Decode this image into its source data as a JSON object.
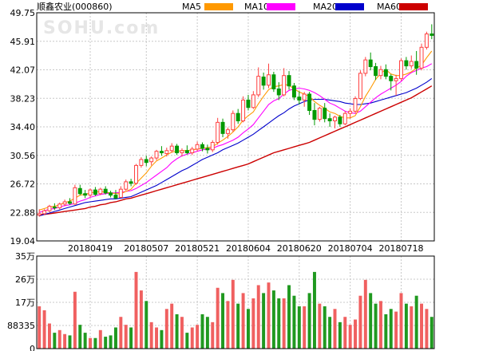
{
  "title": "顺鑫农业(000860)",
  "watermark": "SOHU.com",
  "legend": [
    {
      "name": "MA5",
      "color": "#ff9900"
    },
    {
      "name": "MA10",
      "color": "#ff00ff"
    },
    {
      "name": "MA20",
      "color": "#0000cc"
    },
    {
      "name": "MA60",
      "color": "#cc0000"
    }
  ],
  "colors": {
    "up": "#ff4040",
    "down": "#009900",
    "up_vol": "#f06060",
    "down_vol": "#209920"
  },
  "chart_data": [
    {
      "type": "line",
      "name": "price_panel",
      "ylim": [
        19.04,
        49.75
      ],
      "yticks": [
        "49.75",
        "45.91",
        "42.07",
        "38.23",
        "34.40",
        "30.56",
        "26.72",
        "22.88",
        "19.04"
      ],
      "xticks": [
        {
          "label": "20180419",
          "index": 10
        },
        {
          "label": "20180507",
          "index": 21
        },
        {
          "label": "20180521",
          "index": 31
        },
        {
          "label": "20180604",
          "index": 41
        },
        {
          "label": "20180620",
          "index": 51
        },
        {
          "label": "20180704",
          "index": 61
        },
        {
          "label": "20180718",
          "index": 71
        }
      ],
      "candles": [
        [
          22.5,
          23.3,
          22.3,
          22.7
        ],
        [
          22.7,
          23.3,
          22.5,
          23.1
        ],
        [
          23.1,
          23.9,
          22.9,
          23.7
        ],
        [
          23.6,
          24.1,
          23.2,
          23.5
        ],
        [
          23.5,
          24.2,
          23.3,
          24.0
        ],
        [
          24.0,
          24.6,
          23.7,
          24.3
        ],
        [
          24.3,
          24.8,
          23.9,
          24.1
        ],
        [
          24.0,
          26.6,
          23.9,
          26.2
        ],
        [
          26.1,
          26.6,
          25.2,
          25.4
        ],
        [
          25.4,
          25.9,
          24.8,
          25.2
        ],
        [
          25.2,
          26.1,
          24.9,
          25.9
        ],
        [
          25.9,
          26.3,
          25.1,
          25.3
        ],
        [
          25.4,
          26.2,
          25.2,
          26.0
        ],
        [
          26.0,
          26.4,
          25.3,
          25.5
        ],
        [
          25.5,
          25.8,
          24.9,
          25.2
        ],
        [
          25.2,
          25.9,
          24.7,
          24.8
        ],
        [
          24.9,
          26.4,
          24.8,
          26.0
        ],
        [
          26.0,
          27.3,
          25.8,
          27.0
        ],
        [
          27.0,
          27.4,
          26.4,
          26.8
        ],
        [
          26.8,
          29.4,
          26.6,
          29.2
        ],
        [
          29.2,
          30.3,
          28.9,
          30.0
        ],
        [
          30.0,
          30.5,
          29.1,
          29.6
        ],
        [
          29.7,
          30.4,
          29.2,
          30.2
        ],
        [
          30.2,
          31.3,
          29.9,
          31.1
        ],
        [
          31.1,
          31.8,
          30.5,
          30.9
        ],
        [
          30.8,
          31.6,
          30.4,
          31.2
        ],
        [
          31.2,
          32.2,
          30.9,
          31.8
        ],
        [
          31.8,
          32.1,
          30.6,
          30.9
        ],
        [
          30.9,
          31.5,
          30.4,
          31.2
        ],
        [
          31.2,
          31.9,
          30.7,
          30.9
        ],
        [
          30.9,
          31.7,
          30.6,
          31.4
        ],
        [
          31.4,
          32.4,
          31.1,
          32.0
        ],
        [
          32.0,
          32.3,
          31.1,
          31.5
        ],
        [
          31.5,
          32.0,
          30.8,
          31.3
        ],
        [
          31.3,
          32.6,
          31.0,
          32.3
        ],
        [
          32.3,
          35.6,
          32.0,
          35.0
        ],
        [
          35.0,
          35.5,
          33.0,
          33.5
        ],
        [
          33.5,
          34.3,
          32.8,
          34.0
        ],
        [
          34.0,
          36.6,
          33.7,
          36.2
        ],
        [
          36.2,
          36.8,
          34.8,
          35.2
        ],
        [
          35.2,
          38.5,
          35.0,
          38.0
        ],
        [
          38.0,
          38.7,
          36.6,
          37.0
        ],
        [
          37.0,
          39.2,
          36.8,
          38.7
        ],
        [
          38.7,
          42.4,
          38.4,
          41.2
        ],
        [
          41.1,
          41.7,
          39.4,
          40.0
        ],
        [
          40.0,
          42.9,
          39.6,
          41.4
        ],
        [
          41.4,
          41.8,
          39.1,
          39.5
        ],
        [
          39.5,
          40.4,
          38.0,
          38.7
        ],
        [
          38.7,
          42.3,
          38.5,
          41.3
        ],
        [
          41.3,
          41.9,
          39.4,
          39.9
        ],
        [
          39.9,
          40.3,
          38.0,
          38.4
        ],
        [
          38.4,
          39.2,
          37.4,
          38.0
        ],
        [
          38.0,
          39.1,
          37.1,
          38.8
        ],
        [
          38.8,
          39.1,
          36.0,
          36.6
        ],
        [
          36.6,
          37.6,
          34.6,
          35.4
        ],
        [
          35.4,
          37.1,
          35.1,
          36.9
        ],
        [
          36.9,
          37.6,
          35.0,
          35.5
        ],
        [
          35.5,
          36.2,
          34.4,
          35.2
        ],
        [
          35.2,
          35.9,
          34.2,
          35.7
        ],
        [
          35.7,
          36.0,
          34.4,
          34.8
        ],
        [
          34.8,
          36.5,
          34.6,
          36.2
        ],
        [
          36.2,
          36.9,
          35.5,
          36.5
        ],
        [
          36.5,
          38.5,
          36.2,
          38.2
        ],
        [
          38.2,
          42.0,
          38.0,
          41.6
        ],
        [
          41.6,
          43.8,
          41.2,
          43.4
        ],
        [
          43.4,
          44.4,
          42.0,
          42.5
        ],
        [
          42.5,
          43.0,
          40.7,
          41.3
        ],
        [
          41.3,
          42.6,
          40.8,
          42.1
        ],
        [
          42.1,
          42.8,
          40.8,
          41.2
        ],
        [
          41.2,
          41.5,
          39.3,
          40.6
        ],
        [
          40.6,
          41.4,
          38.6,
          40.9
        ],
        [
          40.9,
          43.6,
          40.6,
          43.3
        ],
        [
          43.3,
          43.8,
          42.1,
          42.6
        ],
        [
          42.6,
          44.0,
          42.2,
          43.2
        ],
        [
          43.2,
          44.6,
          41.4,
          42.3
        ],
        [
          42.3,
          45.6,
          42.0,
          45.1
        ],
        [
          45.1,
          47.2,
          44.8,
          46.9
        ],
        [
          46.9,
          48.2,
          46.2,
          46.7
        ]
      ],
      "ma5": [
        23.2,
        23.4,
        23.6,
        23.7,
        23.9,
        24.2,
        24.4,
        24.8,
        25.2,
        25.3,
        25.5,
        25.6,
        25.7,
        25.6,
        25.5,
        25.4,
        25.4,
        25.7,
        26.0,
        26.8,
        27.5,
        28.2,
        29.1,
        29.8,
        30.2,
        30.6,
        31.0,
        31.1,
        31.2,
        31.2,
        31.3,
        31.4,
        31.5,
        31.6,
        31.7,
        32.2,
        32.6,
        33.1,
        33.7,
        34.4,
        35.3,
        35.9,
        36.4,
        37.5,
        38.5,
        39.4,
        39.8,
        39.9,
        40.1,
        40.0,
        39.5,
        39.1,
        38.8,
        38.5,
        37.8,
        37.3,
        36.9,
        36.4,
        36.2,
        35.8,
        35.6,
        35.6,
        35.9,
        37.1,
        38.5,
        39.6,
        40.8,
        41.6,
        42.1,
        41.5,
        41.3,
        41.3,
        41.5,
        41.8,
        42.3,
        42.7,
        43.7,
        44.6
      ],
      "ma10": [
        22.9,
        23.1,
        23.3,
        23.4,
        23.6,
        23.8,
        23.9,
        24.1,
        24.4,
        24.6,
        24.9,
        25.1,
        25.3,
        25.4,
        25.5,
        25.5,
        25.6,
        25.7,
        25.8,
        26.1,
        26.5,
        26.9,
        27.4,
        27.9,
        28.4,
        28.9,
        29.6,
        30.1,
        30.5,
        30.7,
        30.9,
        31.1,
        31.3,
        31.4,
        31.5,
        31.8,
        32.0,
        32.3,
        32.6,
        33.0,
        33.6,
        34.1,
        34.7,
        35.6,
        36.5,
        37.4,
        37.9,
        38.2,
        38.8,
        39.3,
        39.5,
        39.6,
        39.5,
        39.3,
        39.0,
        38.6,
        38.1,
        37.6,
        37.3,
        36.9,
        36.5,
        36.3,
        36.2,
        36.5,
        37.1,
        37.7,
        38.3,
        38.8,
        39.2,
        39.6,
        40.0,
        40.5,
        41.2,
        41.7,
        42.0,
        42.3,
        42.5,
        42.9
      ],
      "ma20": [
        22.4,
        22.6,
        22.8,
        23.0,
        23.2,
        23.4,
        23.6,
        23.8,
        24.0,
        24.2,
        24.3,
        24.4,
        24.5,
        24.6,
        24.7,
        24.7,
        24.8,
        24.9,
        25.0,
        25.3,
        25.6,
        25.9,
        26.2,
        26.5,
        26.9,
        27.3,
        27.7,
        28.1,
        28.5,
        28.8,
        29.2,
        29.6,
        30.0,
        30.3,
        30.6,
        30.9,
        31.3,
        31.6,
        31.9,
        32.2,
        32.6,
        33.0,
        33.4,
        33.9,
        34.4,
        34.9,
        35.4,
        35.9,
        36.3,
        36.8,
        37.2,
        37.5,
        37.8,
        38.0,
        38.1,
        38.1,
        38.1,
        38.0,
        37.9,
        37.8,
        37.6,
        37.5,
        37.4,
        37.4,
        37.5,
        37.6,
        37.8,
        38.0,
        38.2,
        38.4,
        38.6,
        38.8,
        39.0,
        39.3,
        39.6,
        40.0,
        40.4,
        40.9
      ],
      "ma60": [
        22.6,
        22.6,
        22.7,
        22.8,
        22.9,
        23.0,
        23.1,
        23.2,
        23.3,
        23.4,
        23.6,
        23.7,
        23.9,
        24.0,
        24.2,
        24.3,
        24.5,
        24.7,
        24.8,
        25.0,
        25.2,
        25.4,
        25.6,
        25.8,
        26.0,
        26.2,
        26.4,
        26.6,
        26.8,
        27.0,
        27.2,
        27.4,
        27.6,
        27.8,
        28.0,
        28.2,
        28.4,
        28.6,
        28.8,
        29.0,
        29.2,
        29.4,
        29.7,
        30.0,
        30.3,
        30.6,
        30.9,
        31.1,
        31.3,
        31.5,
        31.7,
        31.9,
        32.1,
        32.3,
        32.6,
        32.9,
        33.2,
        33.5,
        33.8,
        34.1,
        34.4,
        34.7,
        35.0,
        35.3,
        35.6,
        35.9,
        36.2,
        36.5,
        36.8,
        37.1,
        37.4,
        37.7,
        38.0,
        38.3,
        38.7,
        39.1,
        39.5,
        39.9
      ]
    },
    {
      "type": "bar",
      "name": "volume_panel",
      "ylim": [
        0,
        350000
      ],
      "yticks": [
        "35万",
        "26万",
        "17万",
        "88335",
        "0"
      ],
      "values": [
        160000,
        145000,
        95000,
        60000,
        70000,
        55000,
        50000,
        215000,
        90000,
        60000,
        40000,
        40000,
        70000,
        45000,
        50000,
        80000,
        120000,
        90000,
        80000,
        290000,
        220000,
        180000,
        100000,
        80000,
        70000,
        150000,
        170000,
        130000,
        120000,
        60000,
        80000,
        90000,
        130000,
        120000,
        100000,
        230000,
        210000,
        180000,
        260000,
        170000,
        210000,
        150000,
        190000,
        240000,
        210000,
        250000,
        220000,
        190000,
        190000,
        240000,
        200000,
        160000,
        160000,
        210000,
        290000,
        170000,
        160000,
        120000,
        150000,
        100000,
        120000,
        90000,
        110000,
        200000,
        260000,
        210000,
        170000,
        180000,
        130000,
        150000,
        140000,
        210000,
        170000,
        160000,
        200000,
        170000,
        150000,
        120000
      ]
    }
  ]
}
